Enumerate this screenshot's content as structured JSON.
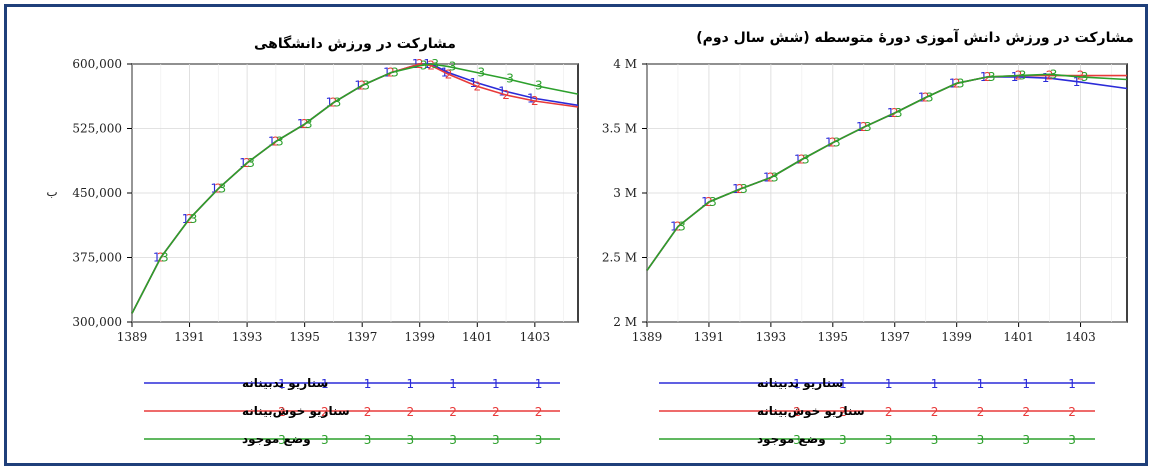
{
  "chart_data": [
    {
      "type": "line",
      "title": "مشارکت در ورزش دانشگاهی",
      "ylabel": "ب",
      "x_ticks": [
        "1389",
        "1391",
        "1393",
        "1395",
        "1397",
        "1399",
        "1401",
        "1403"
      ],
      "y_ticks": [
        "600,000",
        "525,000",
        "450,000",
        "375,000",
        "300,000"
      ],
      "xlim": [
        1389,
        1404.5
      ],
      "ylim": [
        300000,
        600000
      ],
      "grid": true,
      "legend_position": "bottom",
      "series": [
        {
          "name": "سناریو بدبینانه",
          "marker": "1",
          "color": "#2b2bd8",
          "x": [
            1389,
            1390,
            1391,
            1392,
            1393,
            1394,
            1395,
            1396,
            1397,
            1398,
            1399,
            1399.4,
            1400,
            1401,
            1402,
            1403,
            1404.5
          ],
          "y": [
            310000,
            375000,
            420000,
            455000,
            485000,
            510000,
            530000,
            555000,
            575000,
            590000,
            600000,
            600000,
            590000,
            578000,
            568000,
            560000,
            552000
          ]
        },
        {
          "name": "سناریو خوش‌بینانه",
          "marker": "2",
          "color": "#e83a3a",
          "x": [
            1389,
            1390,
            1391,
            1392,
            1393,
            1394,
            1395,
            1396,
            1397,
            1398,
            1399,
            1399.4,
            1400,
            1401,
            1402,
            1403,
            1404.5
          ],
          "y": [
            310000,
            375000,
            420000,
            455000,
            485000,
            510000,
            530000,
            555000,
            575000,
            590000,
            600000,
            598000,
            588000,
            574000,
            564000,
            557000,
            550000
          ]
        },
        {
          "name": "وضع موجود",
          "marker": "3",
          "color": "#2ca02c",
          "x": [
            1389,
            1390,
            1391,
            1392,
            1393,
            1394,
            1395,
            1396,
            1397,
            1398,
            1399,
            1399.4,
            1400,
            1401,
            1402,
            1403,
            1404.5
          ],
          "y": [
            310000,
            375000,
            420000,
            455000,
            485000,
            510000,
            530000,
            555000,
            575000,
            590000,
            598000,
            600000,
            597000,
            590000,
            583000,
            575000,
            565000
          ]
        }
      ]
    },
    {
      "type": "line",
      "title": "مشارکت در ورزش دانش آموزی دورهٔ متوسطه (شش سال دوم)",
      "x_ticks": [
        "1389",
        "1391",
        "1393",
        "1395",
        "1397",
        "1399",
        "1401",
        "1403"
      ],
      "y_ticks": [
        "4 M",
        "3.5 M",
        "3 M",
        "2.5 M",
        "2 M"
      ],
      "xlim": [
        1389,
        1404.5
      ],
      "ylim": [
        2000000,
        4000000
      ],
      "grid": true,
      "legend_position": "bottom",
      "series": [
        {
          "name": "سناریو بدبینانه",
          "marker": "1",
          "color": "#2b2bd8",
          "x": [
            1389,
            1390,
            1391,
            1392,
            1393,
            1394,
            1395,
            1396,
            1397,
            1398,
            1399,
            1400,
            1401,
            1402,
            1403,
            1404.5
          ],
          "y": [
            2400000,
            2740000,
            2930000,
            3030000,
            3120000,
            3260000,
            3390000,
            3510000,
            3620000,
            3740000,
            3850000,
            3900000,
            3900000,
            3890000,
            3860000,
            3810000
          ]
        },
        {
          "name": "سناریو خوش‌بینانه",
          "marker": "2",
          "color": "#e83a3a",
          "x": [
            1389,
            1390,
            1391,
            1392,
            1393,
            1394,
            1395,
            1396,
            1397,
            1398,
            1399,
            1400,
            1401,
            1402,
            1403,
            1404.5
          ],
          "y": [
            2400000,
            2740000,
            2930000,
            3030000,
            3120000,
            3260000,
            3390000,
            3510000,
            3620000,
            3740000,
            3850000,
            3900000,
            3910000,
            3910000,
            3910000,
            3910000
          ]
        },
        {
          "name": "وضع موجود",
          "marker": "3",
          "color": "#2ca02c",
          "x": [
            1389,
            1390,
            1391,
            1392,
            1393,
            1394,
            1395,
            1396,
            1397,
            1398,
            1399,
            1400,
            1401,
            1402,
            1403,
            1404.5
          ],
          "y": [
            2400000,
            2740000,
            2930000,
            3030000,
            3120000,
            3260000,
            3390000,
            3510000,
            3620000,
            3740000,
            3850000,
            3900000,
            3910000,
            3920000,
            3900000,
            3880000
          ]
        }
      ]
    }
  ]
}
